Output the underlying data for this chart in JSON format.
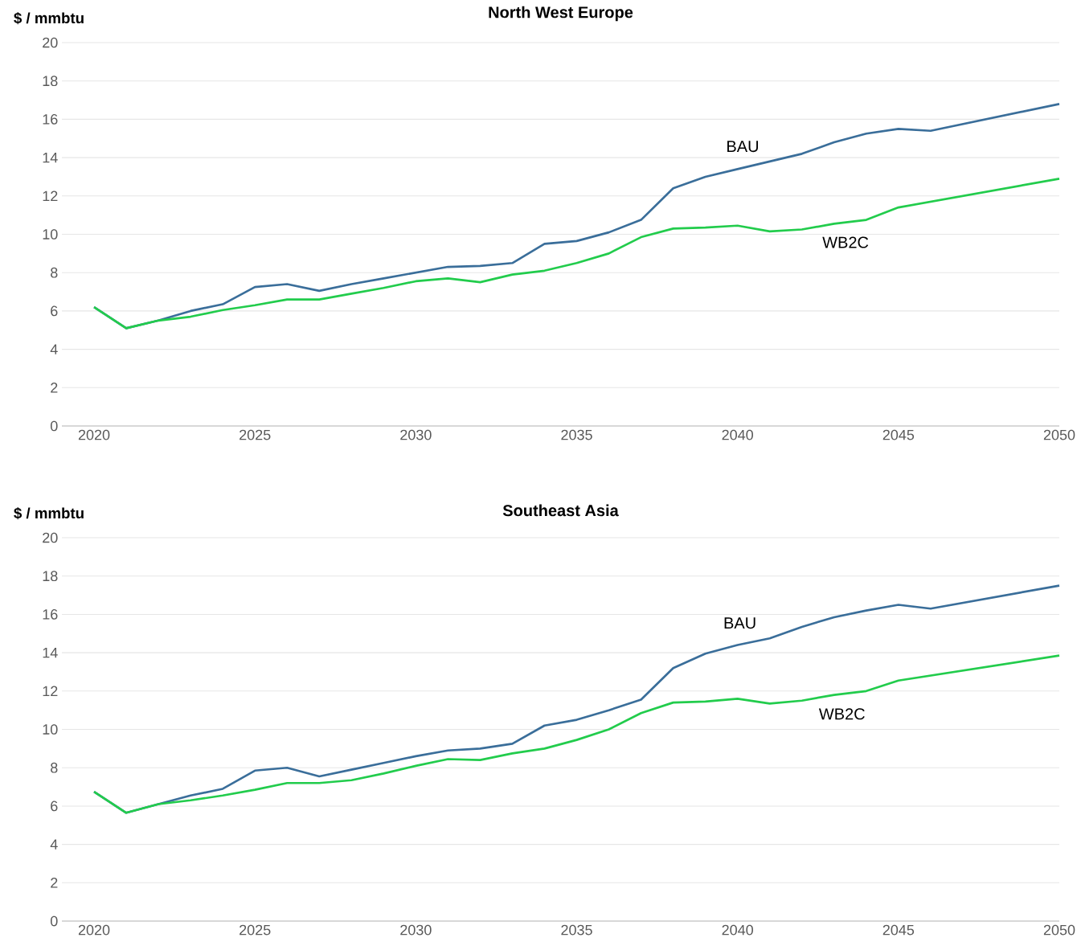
{
  "chart_data": [
    {
      "type": "line",
      "title": "North West Europe",
      "ylabel": "$ / mmbtu",
      "xlim": [
        2019,
        2050
      ],
      "xticks": [
        2020,
        2025,
        2030,
        2035,
        2040,
        2045,
        2050
      ],
      "ylim": [
        0,
        20
      ],
      "yticks": [
        0,
        2,
        4,
        6,
        8,
        10,
        12,
        14,
        16,
        18,
        20
      ],
      "grid": "y",
      "series": [
        {
          "name": "BAU",
          "color": "#3a6e9a",
          "x": [
            2020,
            2021,
            2022,
            2023,
            2024,
            2025,
            2026,
            2027,
            2028,
            2029,
            2030,
            2031,
            2032,
            2033,
            2034,
            2035,
            2036,
            2037,
            2038,
            2039,
            2040,
            2041,
            2042,
            2043,
            2044,
            2045,
            2046,
            2050
          ],
          "values": [
            6.2,
            5.1,
            5.5,
            6.0,
            6.35,
            7.25,
            7.4,
            7.05,
            7.4,
            7.7,
            8.0,
            8.3,
            8.35,
            8.5,
            9.5,
            9.65,
            10.1,
            10.75,
            12.4,
            13.0,
            13.4,
            13.8,
            14.2,
            14.8,
            15.25,
            15.5,
            15.4,
            16.8
          ]
        },
        {
          "name": "WB2C",
          "color": "#22cc4c",
          "x": [
            2020,
            2021,
            2022,
            2023,
            2024,
            2025,
            2026,
            2027,
            2028,
            2029,
            2030,
            2031,
            2032,
            2033,
            2034,
            2035,
            2036,
            2037,
            2038,
            2039,
            2040,
            2041,
            2042,
            2043,
            2044,
            2045,
            2050
          ],
          "values": [
            6.2,
            5.1,
            5.5,
            5.7,
            6.05,
            6.3,
            6.6,
            6.6,
            6.9,
            7.2,
            7.55,
            7.7,
            7.5,
            7.9,
            8.1,
            8.5,
            9.0,
            9.85,
            10.3,
            10.35,
            10.45,
            10.15,
            10.25,
            10.55,
            10.75,
            11.4,
            12.9
          ]
        }
      ]
    },
    {
      "type": "line",
      "title": "Southeast Asia",
      "ylabel": "$ / mmbtu",
      "xlim": [
        2019,
        2050
      ],
      "xticks": [
        2020,
        2025,
        2030,
        2035,
        2040,
        2045,
        2050
      ],
      "ylim": [
        0,
        20
      ],
      "yticks": [
        0,
        2,
        4,
        6,
        8,
        10,
        12,
        14,
        16,
        18,
        20
      ],
      "grid": "y",
      "series": [
        {
          "name": "BAU",
          "color": "#3a6e9a",
          "x": [
            2020,
            2021,
            2022,
            2023,
            2024,
            2025,
            2026,
            2027,
            2028,
            2029,
            2030,
            2031,
            2032,
            2033,
            2034,
            2035,
            2036,
            2037,
            2038,
            2039,
            2040,
            2041,
            2042,
            2043,
            2044,
            2045,
            2046,
            2050
          ],
          "values": [
            6.75,
            5.65,
            6.1,
            6.55,
            6.9,
            7.85,
            8.0,
            7.55,
            7.9,
            8.25,
            8.6,
            8.9,
            9.0,
            9.25,
            10.2,
            10.5,
            11.0,
            11.55,
            13.2,
            13.95,
            14.4,
            14.75,
            15.35,
            15.85,
            16.2,
            16.5,
            16.3,
            17.5
          ]
        },
        {
          "name": "WB2C",
          "color": "#22cc4c",
          "x": [
            2020,
            2021,
            2022,
            2023,
            2024,
            2025,
            2026,
            2027,
            2028,
            2029,
            2030,
            2031,
            2032,
            2033,
            2034,
            2035,
            2036,
            2037,
            2038,
            2039,
            2040,
            2041,
            2042,
            2043,
            2044,
            2045,
            2050
          ],
          "values": [
            6.75,
            5.65,
            6.1,
            6.3,
            6.55,
            6.85,
            7.2,
            7.2,
            7.35,
            7.7,
            8.1,
            8.45,
            8.4,
            8.75,
            9.0,
            9.45,
            10.0,
            10.85,
            11.4,
            11.45,
            11.6,
            11.35,
            11.5,
            11.8,
            12.0,
            12.55,
            13.85
          ]
        }
      ]
    }
  ]
}
